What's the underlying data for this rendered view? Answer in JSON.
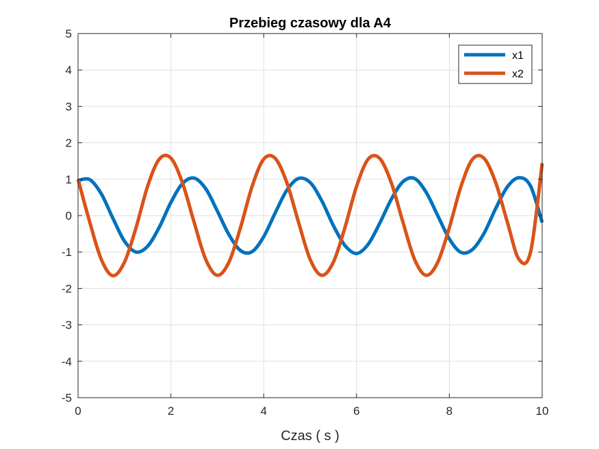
{
  "chart_data": {
    "type": "line",
    "title": "Przebieg czasowy dla A4",
    "xlabel": "Czas ( s )",
    "ylabel": "",
    "xlim": [
      0,
      10
    ],
    "ylim": [
      -5,
      5
    ],
    "x_ticks": [
      "0",
      "2",
      "4",
      "6",
      "8",
      "10"
    ],
    "y_ticks": [
      "5",
      "4",
      "3",
      "2",
      "1",
      "0",
      "-1",
      "-2",
      "-3",
      "-4",
      "-5"
    ],
    "grid": true,
    "legend_position": "top-right",
    "x": [
      0,
      0.25,
      0.5,
      0.75,
      1.0,
      1.25,
      1.5,
      1.75,
      2.0,
      2.25,
      2.5,
      2.75,
      3.0,
      3.25,
      3.5,
      3.75,
      4.0,
      4.25,
      4.5,
      4.75,
      5.0,
      5.25,
      5.5,
      5.75,
      6.0,
      6.25,
      6.5,
      6.75,
      7.0,
      7.25,
      7.5,
      7.75,
      8.0,
      8.25,
      8.5,
      8.75,
      9.0,
      9.25,
      9.5,
      9.75,
      10.0
    ],
    "series": [
      {
        "name": "x1",
        "color": "#0072BD",
        "values": [
          0.96,
          0.99,
          0.6,
          -0.07,
          -0.7,
          -1.0,
          -0.84,
          -0.32,
          0.36,
          0.88,
          1.03,
          0.74,
          0.13,
          -0.52,
          -0.96,
          -0.99,
          -0.58,
          0.08,
          0.7,
          1.02,
          0.91,
          0.41,
          -0.27,
          -0.82,
          -1.04,
          -0.79,
          -0.21,
          0.45,
          0.93,
          1.02,
          0.64,
          0.0,
          -0.64,
          -1.01,
          -0.93,
          -0.48,
          0.2,
          0.79,
          1.04,
          0.81,
          -0.19
        ]
      },
      {
        "name": "x2",
        "color": "#D95319",
        "values": [
          1.0,
          -0.17,
          -1.2,
          -1.65,
          -1.28,
          -0.33,
          0.81,
          1.55,
          1.58,
          0.9,
          -0.18,
          -1.2,
          -1.64,
          -1.28,
          -0.33,
          0.8,
          1.55,
          1.57,
          0.9,
          -0.18,
          -1.2,
          -1.64,
          -1.28,
          -0.33,
          0.8,
          1.55,
          1.57,
          0.9,
          -0.18,
          -1.2,
          -1.64,
          -1.28,
          -0.33,
          0.8,
          1.55,
          1.57,
          0.9,
          -0.18,
          -1.2,
          -1.0,
          1.44
        ]
      }
    ]
  }
}
